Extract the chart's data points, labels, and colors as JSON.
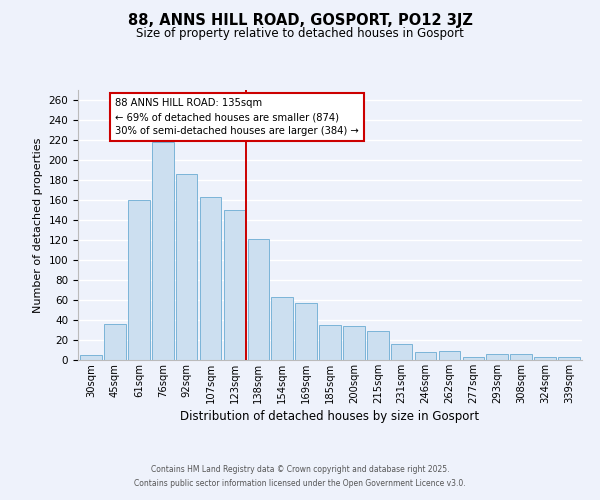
{
  "title": "88, ANNS HILL ROAD, GOSPORT, PO12 3JZ",
  "subtitle": "Size of property relative to detached houses in Gosport",
  "xlabel": "Distribution of detached houses by size in Gosport",
  "ylabel": "Number of detached properties",
  "bar_labels": [
    "30sqm",
    "45sqm",
    "61sqm",
    "76sqm",
    "92sqm",
    "107sqm",
    "123sqm",
    "138sqm",
    "154sqm",
    "169sqm",
    "185sqm",
    "200sqm",
    "215sqm",
    "231sqm",
    "246sqm",
    "262sqm",
    "277sqm",
    "293sqm",
    "308sqm",
    "324sqm",
    "339sqm"
  ],
  "bar_values": [
    5,
    36,
    160,
    218,
    186,
    163,
    150,
    121,
    63,
    57,
    35,
    34,
    29,
    16,
    8,
    9,
    3,
    6,
    6,
    3,
    3
  ],
  "bar_color": "#ccdff0",
  "bar_edge_color": "#7ab4d8",
  "background_color": "#eef2fb",
  "grid_color": "#ffffff",
  "vline_color": "#cc0000",
  "annotation_title": "88 ANNS HILL ROAD: 135sqm",
  "annotation_line1": "← 69% of detached houses are smaller (874)",
  "annotation_line2": "30% of semi-detached houses are larger (384) →",
  "ylim": [
    0,
    270
  ],
  "ytick_step": 20,
  "footer_line1": "Contains HM Land Registry data © Crown copyright and database right 2025.",
  "footer_line2": "Contains public sector information licensed under the Open Government Licence v3.0."
}
